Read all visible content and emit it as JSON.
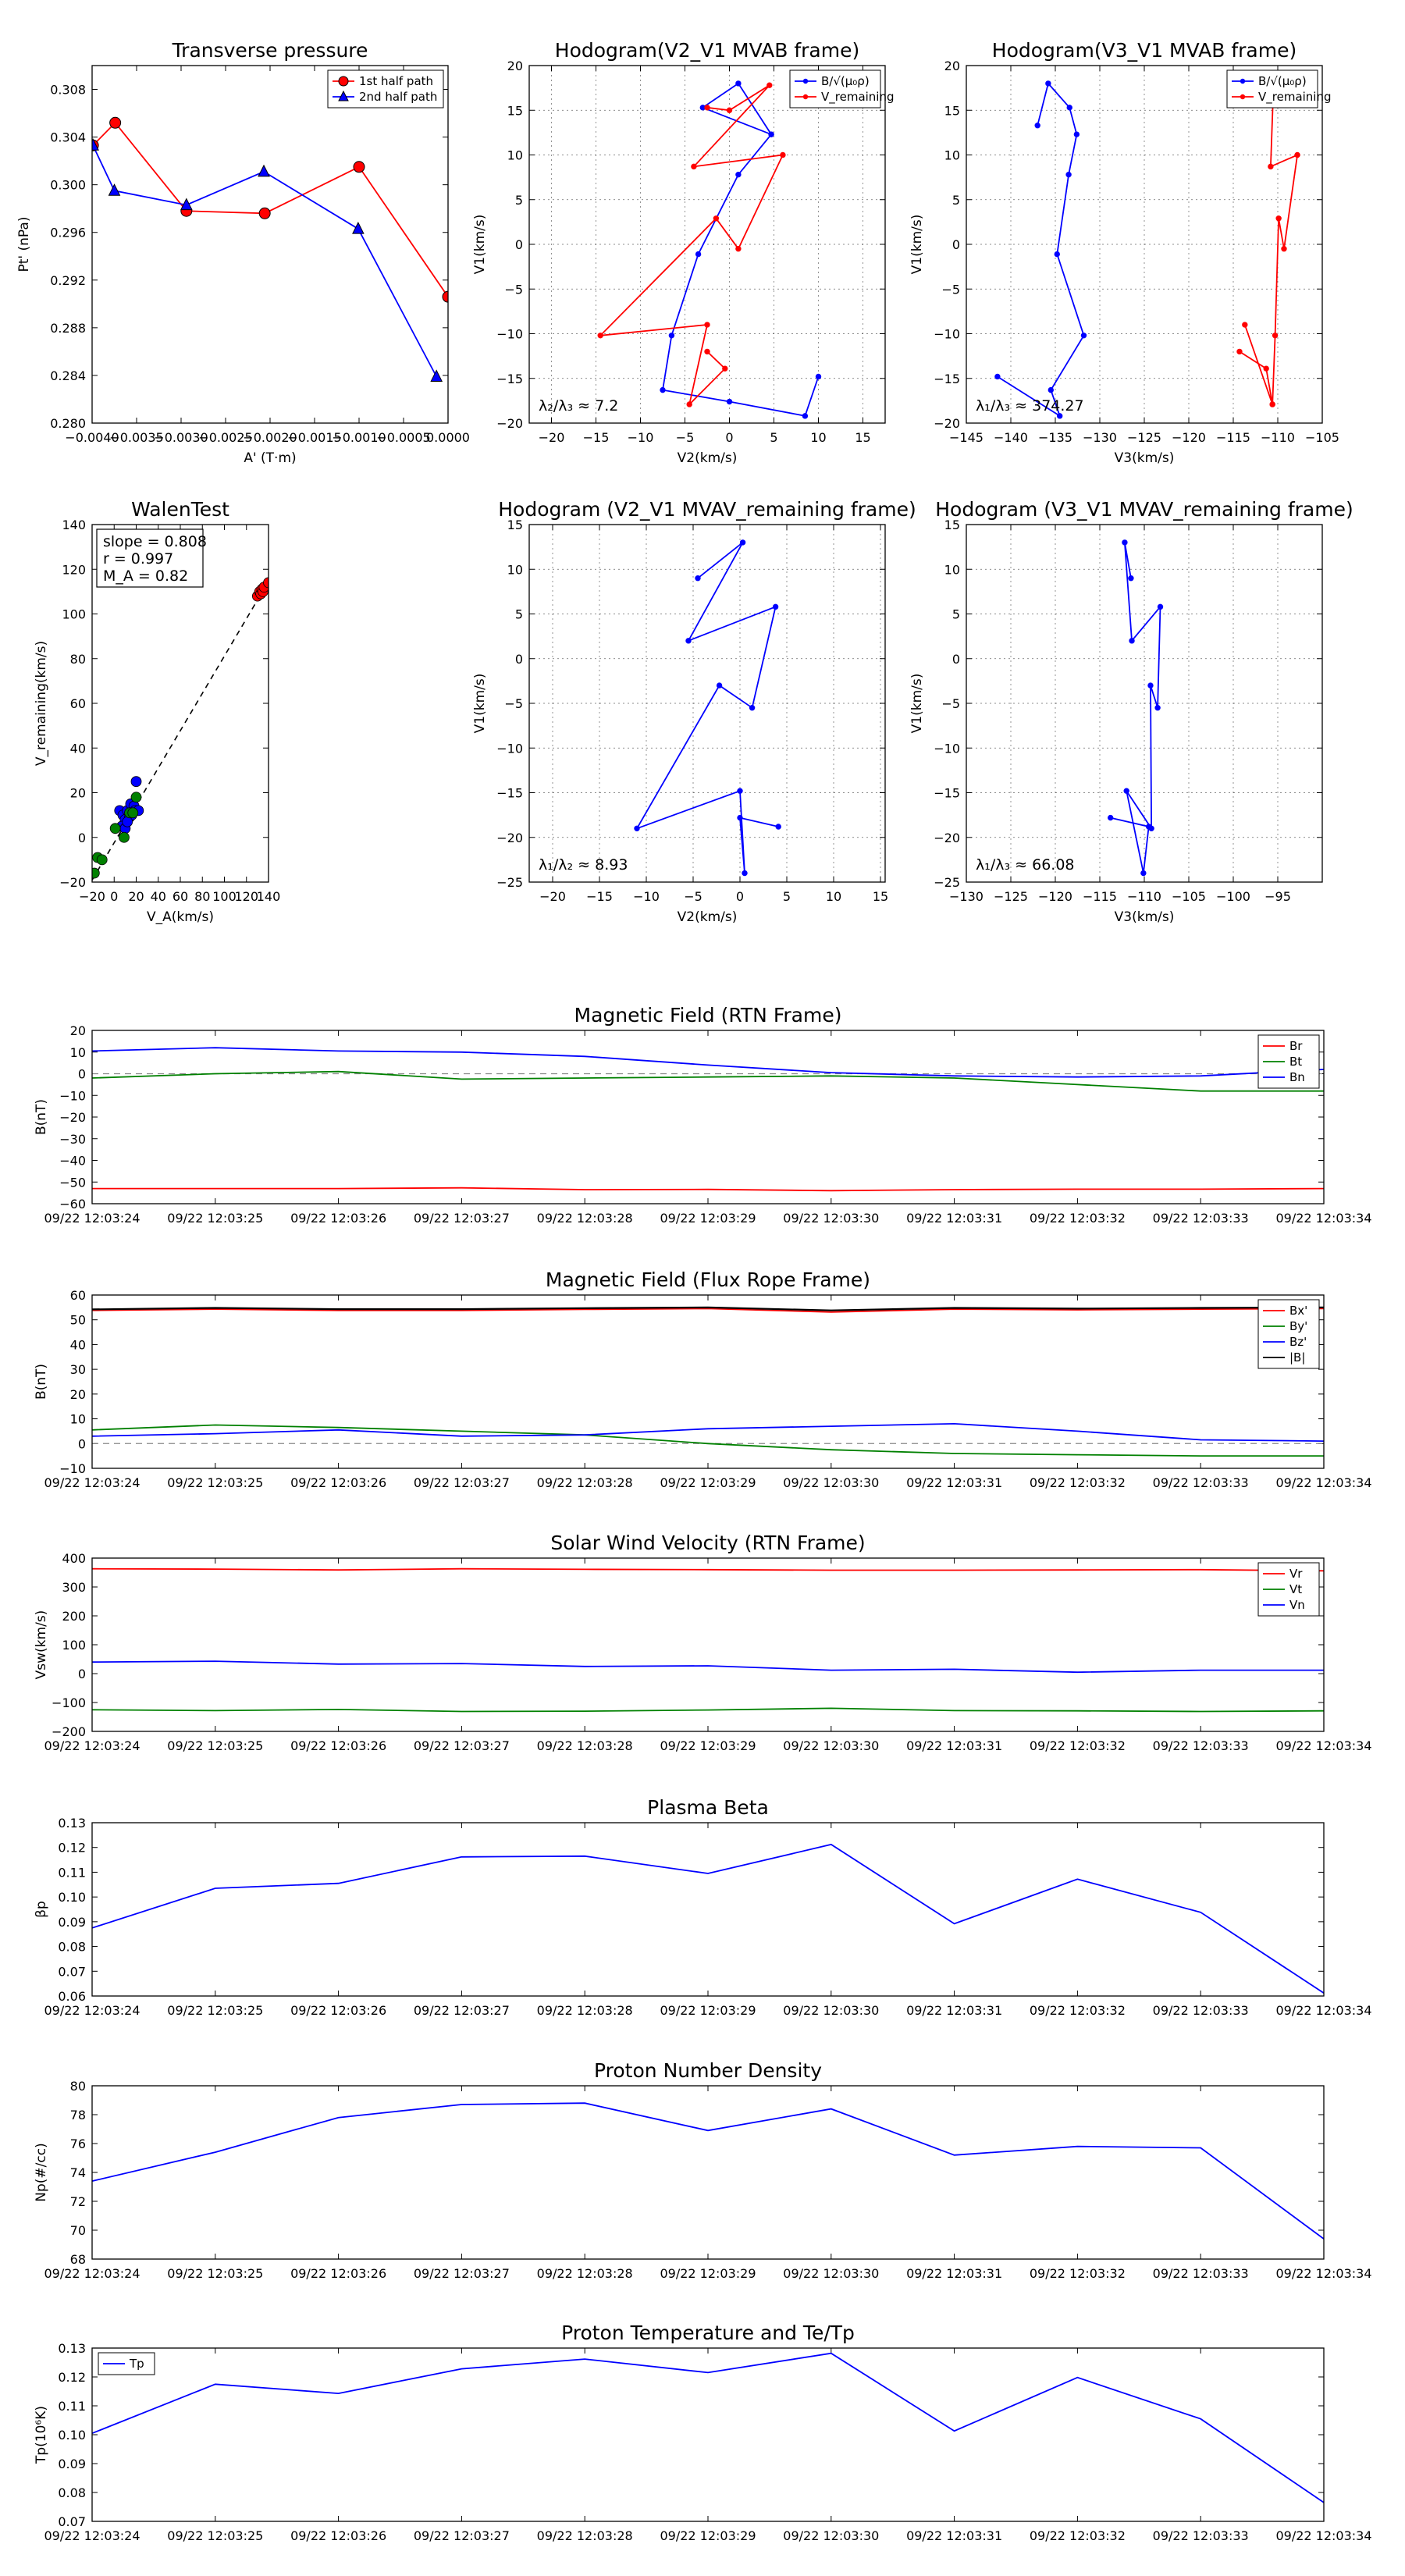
{
  "chart_data": [
    {
      "id": "p1",
      "type": "scatter",
      "title": "Transverse pressure",
      "xlabel": "A' (T·m)",
      "ylabel": "Pt' (nPa)",
      "xlim": [
        -0.004,
        0.0
      ],
      "ylim": [
        0.28,
        0.31
      ],
      "xticks": [
        -0.004,
        -0.0035,
        -0.003,
        -0.0025,
        -0.002,
        -0.0015,
        -0.001,
        -0.0005,
        0.0
      ],
      "xticklabels": [
        "−0.0040",
        "−0.0035",
        "−0.0030",
        "−0.0025",
        "−0.0020",
        "−0.0015",
        "−0.0010",
        "−0.0005",
        "0.0000"
      ],
      "yticks": [
        0.28,
        0.284,
        0.288,
        0.292,
        0.296,
        0.3,
        0.304,
        0.308
      ],
      "yticklabels": [
        "0.280",
        "0.284",
        "0.288",
        "0.292",
        "0.296",
        "0.300",
        "0.304",
        "0.308"
      ],
      "legend": "top-right",
      "grid": false,
      "series": [
        {
          "name": "1st half path",
          "color": "#ff0000",
          "marker": "circle",
          "x": [
            -0.00399,
            -0.00374,
            -0.00294,
            -0.00206,
            -0.001,
            0.0
          ],
          "y": [
            0.3033,
            0.3052,
            0.2978,
            0.2976,
            0.3015,
            0.2906
          ]
        },
        {
          "name": "2nd half path",
          "color": "#0000ff",
          "marker": "triangle",
          "x": [
            -0.00399,
            -0.00375,
            -0.00294,
            -0.00207,
            -0.00101,
            -0.00013
          ],
          "y": [
            0.3033,
            0.2995,
            0.2983,
            0.3011,
            0.2963,
            0.2839
          ]
        }
      ]
    },
    {
      "id": "p2",
      "type": "line",
      "title": "Hodogram(V2_V1 MVAB frame)",
      "xlabel": "V2(km/s)",
      "ylabel": "V1(km/s)",
      "xlim": [
        -22.5,
        17.5
      ],
      "ylim": [
        -20,
        20
      ],
      "xticks": [
        -20,
        -15,
        -10,
        -5,
        0,
        5,
        10,
        15
      ],
      "xticklabels": [
        "−20",
        "−15",
        "−10",
        "−5",
        "0",
        "5",
        "10",
        "15"
      ],
      "yticks": [
        -20,
        -15,
        -10,
        -5,
        0,
        5,
        10,
        15,
        20
      ],
      "yticklabels": [
        "−20",
        "−15",
        "−10",
        "−5",
        "0",
        "5",
        "10",
        "15",
        "20"
      ],
      "legend": "top-right",
      "grid": true,
      "annotation": "λ₂/λ₃ ≈ 7.2",
      "series": [
        {
          "name": "B/√(μ₀ρ)",
          "color": "#0000ff",
          "x": [
            10,
            8.5,
            0,
            -7.5,
            -6.5,
            -3.5,
            1,
            4.7,
            1,
            -3,
            4.7
          ],
          "y": [
            -14.8,
            -19.2,
            -17.6,
            -16.3,
            -10.2,
            -1.1,
            7.8,
            12.3,
            18,
            15.3,
            12.3
          ]
        },
        {
          "name": "V_remaining",
          "color": "#ff0000",
          "x": [
            -2.5,
            0,
            4.5,
            -4,
            6,
            1,
            -1.5,
            -14.5,
            -2.5,
            -4.5,
            -0.5,
            -2.5
          ],
          "y": [
            15.3,
            15,
            17.8,
            8.7,
            10,
            -0.5,
            2.9,
            -10.2,
            -9,
            -17.9,
            -13.9,
            -12
          ]
        }
      ]
    },
    {
      "id": "p3",
      "type": "line",
      "title": "Hodogram(V3_V1 MVAB frame)",
      "xlabel": "V3(km/s)",
      "ylabel": "V1(km/s)",
      "xlim": [
        -145,
        -105
      ],
      "ylim": [
        -20,
        20
      ],
      "xticks": [
        -145,
        -140,
        -135,
        -130,
        -125,
        -120,
        -115,
        -110,
        -105
      ],
      "xticklabels": [
        "−145",
        "−140",
        "−135",
        "−130",
        "−125",
        "−120",
        "−115",
        "−110",
        "−105"
      ],
      "yticks": [
        -20,
        -15,
        -10,
        -5,
        0,
        5,
        10,
        15,
        20
      ],
      "yticklabels": [
        "−20",
        "−15",
        "−10",
        "−5",
        "0",
        "5",
        "10",
        "15",
        "20"
      ],
      "legend": "top-right",
      "grid": true,
      "annotation": "λ₁/λ₃ ≈ 374.27",
      "series": [
        {
          "name": "B/√(μ₀ρ)",
          "color": "#0000ff",
          "x": [
            -137,
            -135.8,
            -133.4,
            -132.6,
            -133.5,
            -134.8,
            -131.8,
            -135.5,
            -134.5,
            -141.5
          ],
          "y": [
            13.3,
            18,
            15.3,
            12.3,
            7.8,
            -1.1,
            -10.2,
            -16.3,
            -19.2,
            -14.8
          ]
        },
        {
          "name": "V_remaining",
          "color": "#ff0000",
          "x": [
            -110.5,
            -110.8,
            -107.8,
            -109.3,
            -109.9,
            -110.3,
            -110.6,
            -113.7,
            -110.6,
            -111.3,
            -114.3
          ],
          "y": [
            17.2,
            8.7,
            10,
            -0.5,
            2.9,
            -10.2,
            -17.9,
            -9,
            -17.9,
            -13.9,
            -12
          ]
        }
      ]
    },
    {
      "id": "p4",
      "type": "scatter",
      "title": "WalenTest",
      "xlabel": "V_A(km/s)",
      "ylabel": "V_remaining(km/s)",
      "xlim": [
        -20,
        140
      ],
      "ylim": [
        -20,
        140
      ],
      "xticks": [
        -20,
        0,
        20,
        40,
        60,
        80,
        100,
        120,
        140
      ],
      "xticklabels": [
        "−20",
        "0",
        "20",
        "40",
        "60",
        "80",
        "100",
        "120",
        "140"
      ],
      "yticks": [
        -20,
        0,
        20,
        40,
        60,
        80,
        100,
        120,
        140
      ],
      "yticklabels": [
        "−20",
        "0",
        "20",
        "40",
        "60",
        "80",
        "100",
        "120",
        "140"
      ],
      "legend": "none",
      "grid": false,
      "textbox": [
        "slope = 0.808",
        "r = 0.997",
        "M_A = 0.82"
      ],
      "fit_line": {
        "x": [
          -20,
          140
        ],
        "y": [
          -19.1,
          114.6
        ]
      },
      "series": [
        {
          "name": "red",
          "color": "#ff0000",
          "x": [
            130,
            132,
            133,
            134,
            135,
            136,
            140
          ],
          "y": [
            108,
            110,
            109,
            111,
            110,
            112,
            114
          ]
        },
        {
          "name": "blue",
          "color": "#0000ff",
          "x": [
            5,
            8,
            10,
            12,
            14,
            15,
            16,
            18,
            19,
            20,
            22,
            7,
            10,
            12
          ],
          "y": [
            12,
            10,
            8,
            12,
            9,
            15,
            10,
            14,
            12,
            25,
            12,
            5,
            4,
            7
          ]
        },
        {
          "name": "green",
          "color": "#008000",
          "x": [
            -18,
            -15,
            -11,
            1,
            9,
            14,
            17,
            20
          ],
          "y": [
            -16,
            -9,
            -10,
            4,
            0,
            11,
            11,
            18
          ]
        }
      ]
    },
    {
      "id": "p5",
      "type": "line",
      "title": "Hodogram (V2_V1 MVAV_remaining frame)",
      "xlabel": "V2(km/s)",
      "ylabel": "V1(km/s)",
      "xlim": [
        -22.5,
        15.5
      ],
      "ylim": [
        -25,
        15
      ],
      "xticks": [
        -20,
        -15,
        -10,
        -5,
        0,
        5,
        10,
        15
      ],
      "xticklabels": [
        "−20",
        "−15",
        "−10",
        "−5",
        "0",
        "5",
        "10",
        "15"
      ],
      "yticks": [
        -25,
        -20,
        -15,
        -10,
        -5,
        0,
        5,
        10,
        15
      ],
      "yticklabels": [
        "−25",
        "−20",
        "−15",
        "−10",
        "−5",
        "0",
        "5",
        "10",
        "15"
      ],
      "legend": "none",
      "grid": true,
      "annotation": "λ₁/λ₂ ≈ 8.93",
      "series": [
        {
          "name": "V",
          "color": "#0000ff",
          "x": [
            -4.5,
            0.3,
            -5.5,
            3.8,
            1.3,
            -2.2,
            -11,
            0,
            0.5,
            0,
            4.1
          ],
          "y": [
            9,
            13,
            2,
            5.8,
            -5.5,
            -3,
            -19,
            -14.8,
            -24,
            -17.8,
            -18.8
          ]
        }
      ]
    },
    {
      "id": "p6",
      "type": "line",
      "title": "Hodogram (V3_V1 MVAV_remaining frame)",
      "xlabel": "V3(km/s)",
      "ylabel": "V1(km/s)",
      "xlim": [
        -130,
        -90
      ],
      "ylim": [
        -25,
        15
      ],
      "xticks": [
        -130,
        -125,
        -120,
        -115,
        -110,
        -105,
        -100,
        -95
      ],
      "xticklabels": [
        "−130",
        "−125",
        "−120",
        "−115",
        "−110",
        "−105",
        "−100",
        "−95"
      ],
      "yticks": [
        -25,
        -20,
        -15,
        -10,
        -5,
        0,
        5,
        10,
        15
      ],
      "yticklabels": [
        "−25",
        "−20",
        "−15",
        "−10",
        "−5",
        "0",
        "5",
        "10",
        "15"
      ],
      "legend": "none",
      "grid": true,
      "annotation": "λ₁/λ₃ ≈ 66.08",
      "series": [
        {
          "name": "V",
          "color": "#0000ff",
          "x": [
            -111.5,
            -112.2,
            -111.4,
            -108.2,
            -108.5,
            -109.3,
            -109.2,
            -112,
            -110.1,
            -109.5,
            -113.8
          ],
          "y": [
            9,
            13,
            2,
            5.8,
            -5.5,
            -3,
            -19,
            -14.8,
            -24,
            -18.8,
            -17.8
          ]
        }
      ]
    },
    {
      "id": "p7",
      "type": "line",
      "title": "Magnetic Field (RTN Frame)",
      "xlabel": "",
      "ylabel": "B(nT)",
      "xlim": [
        0,
        10
      ],
      "ylim": [
        -60,
        20
      ],
      "yticks": [
        -60,
        -50,
        -40,
        -30,
        -20,
        -10,
        0,
        10,
        20
      ],
      "yticklabels": [
        "−60",
        "−50",
        "−40",
        "−30",
        "−20",
        "−10",
        "0",
        "10",
        "20"
      ],
      "legend": "top-right",
      "grid": false,
      "zero_line": true,
      "series": [
        {
          "name": "Br",
          "color": "#ff0000",
          "values": [
            -53,
            -53,
            -53,
            -52.7,
            -53.5,
            -53.4,
            -54,
            -53.5,
            -53.3,
            -53.3,
            -53
          ]
        },
        {
          "name": "Bt",
          "color": "#008000",
          "values": [
            -2,
            0,
            1,
            -2.5,
            -2,
            -1.5,
            -1,
            -2,
            -5,
            -8,
            -8
          ]
        },
        {
          "name": "Bn",
          "color": "#0000ff",
          "values": [
            10.5,
            12,
            10.5,
            10,
            8,
            4,
            0.5,
            -1,
            -1.5,
            -1,
            2
          ]
        }
      ]
    },
    {
      "id": "p8",
      "type": "line",
      "title": "Magnetic Field (Flux Rope Frame)",
      "xlabel": "",
      "ylabel": "B(nT)",
      "xlim": [
        0,
        10
      ],
      "ylim": [
        -10,
        60
      ],
      "yticks": [
        -10,
        0,
        10,
        20,
        30,
        40,
        50,
        60
      ],
      "yticklabels": [
        "−10",
        "0",
        "10",
        "20",
        "30",
        "40",
        "50",
        "60"
      ],
      "legend": "top-right",
      "grid": false,
      "zero_line": true,
      "series": [
        {
          "name": "Bx'",
          "color": "#ff0000",
          "values": [
            53.8,
            54.3,
            53.8,
            53.8,
            54.2,
            54.5,
            53.1,
            54.3,
            54,
            54.3,
            54.5
          ]
        },
        {
          "name": "By'",
          "color": "#008000",
          "values": [
            5.5,
            7.5,
            6.5,
            5,
            3.5,
            0,
            -2.5,
            -4,
            -4.5,
            -5,
            -5
          ]
        },
        {
          "name": "Bz'",
          "color": "#0000ff",
          "values": [
            3,
            4,
            5.5,
            3,
            3.5,
            6,
            7,
            8,
            5,
            1.5,
            1
          ]
        },
        {
          "name": "|B|",
          "color": "#000000",
          "values": [
            54.2,
            54.8,
            54.3,
            54.3,
            54.7,
            55,
            53.8,
            54.8,
            54.5,
            54.8,
            55
          ]
        }
      ]
    },
    {
      "id": "p9",
      "type": "line",
      "title": "Solar Wind Velocity (RTN Frame)",
      "xlabel": "",
      "ylabel": "Vsw(km/s)",
      "xlim": [
        0,
        10
      ],
      "ylim": [
        -200,
        400
      ],
      "yticks": [
        -200,
        -100,
        0,
        100,
        200,
        300,
        400
      ],
      "yticklabels": [
        "−200",
        "−100",
        "0",
        "100",
        "200",
        "300",
        "400"
      ],
      "legend": "top-right",
      "grid": false,
      "series": [
        {
          "name": "Vr",
          "color": "#ff0000",
          "values": [
            363,
            362,
            359,
            363,
            361,
            360,
            358,
            358,
            359,
            360,
            356
          ]
        },
        {
          "name": "Vt",
          "color": "#008000",
          "values": [
            -125,
            -128,
            -124,
            -131,
            -130,
            -126,
            -120,
            -128,
            -129,
            -131,
            -129
          ]
        },
        {
          "name": "Vn",
          "color": "#0000ff",
          "values": [
            40,
            43,
            33,
            35,
            25,
            27,
            12,
            15,
            5,
            12,
            12
          ]
        }
      ]
    },
    {
      "id": "p10",
      "type": "line",
      "title": "Plasma Beta",
      "xlabel": "",
      "ylabel": "βp",
      "xlim": [
        0,
        10
      ],
      "ylim": [
        0.06,
        0.13
      ],
      "yticks": [
        0.06,
        0.07,
        0.08,
        0.09,
        0.1,
        0.11,
        0.12,
        0.13
      ],
      "yticklabels": [
        "0.06",
        "0.07",
        "0.08",
        "0.09",
        "0.10",
        "0.11",
        "0.12",
        "0.13"
      ],
      "legend": "none",
      "grid": false,
      "series": [
        {
          "name": "beta",
          "color": "#0000ff",
          "values": [
            0.0875,
            0.1035,
            0.1055,
            0.1162,
            0.1165,
            0.1095,
            0.1212,
            0.0892,
            0.1072,
            0.0938,
            0.0612
          ]
        }
      ]
    },
    {
      "id": "p11",
      "type": "line",
      "title": "Proton Number Density",
      "xlabel": "",
      "ylabel": "Np(#/cc)",
      "xlim": [
        0,
        10
      ],
      "ylim": [
        68,
        80
      ],
      "yticks": [
        68,
        70,
        72,
        74,
        76,
        78,
        80
      ],
      "yticklabels": [
        "68",
        "70",
        "72",
        "74",
        "76",
        "78",
        "80"
      ],
      "legend": "none",
      "grid": false,
      "series": [
        {
          "name": "Np",
          "color": "#0000ff",
          "values": [
            73.4,
            75.4,
            77.8,
            78.7,
            78.8,
            76.9,
            78.4,
            75.2,
            75.8,
            75.7,
            69.4
          ]
        }
      ]
    },
    {
      "id": "p12",
      "type": "line",
      "title": "Proton Temperature and Te/Tp",
      "xlabel": "",
      "ylabel": "Tp(10⁶K)",
      "xlim": [
        0,
        10
      ],
      "ylim": [
        0.07,
        0.13
      ],
      "yticks": [
        0.07,
        0.08,
        0.09,
        0.1,
        0.11,
        0.12,
        0.13
      ],
      "yticklabels": [
        "0.07",
        "0.08",
        "0.09",
        "0.10",
        "0.11",
        "0.12",
        "0.13"
      ],
      "legend": "top-left",
      "grid": false,
      "series": [
        {
          "name": "Tp",
          "color": "#0000ff",
          "values": [
            0.1005,
            0.1175,
            0.1143,
            0.1228,
            0.1262,
            0.1215,
            0.1282,
            0.1013,
            0.1198,
            0.1055,
            0.0765
          ]
        }
      ]
    }
  ],
  "time_ticks": [
    "09/22 12:03:24",
    "09/22 12:03:25",
    "09/22 12:03:26",
    "09/22 12:03:27",
    "09/22 12:03:28",
    "09/22 12:03:29",
    "09/22 12:03:30",
    "09/22 12:03:31",
    "09/22 12:03:32",
    "09/22 12:03:33",
    "09/22 12:03:34"
  ]
}
